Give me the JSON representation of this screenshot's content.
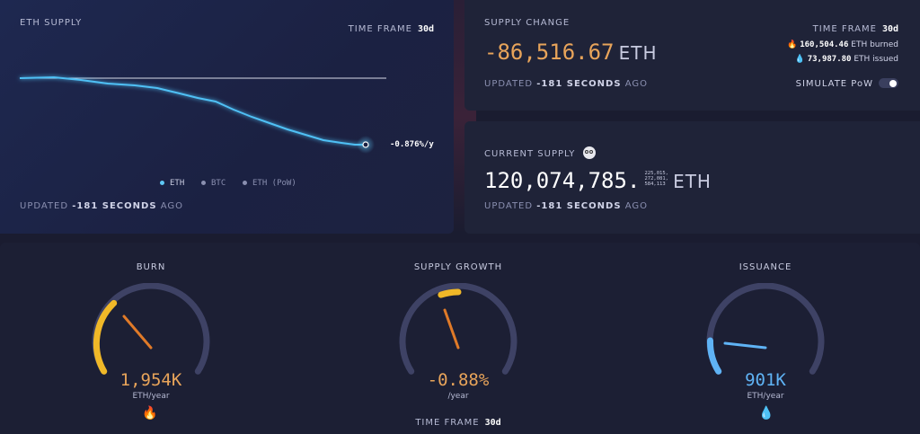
{
  "eth_supply": {
    "title": "ETH SUPPLY",
    "time_frame_label": "TIME FRAME",
    "time_frame_value": "30d",
    "rate_label": "-0.876%/y",
    "legend": [
      {
        "label": "ETH",
        "color": "#5fc8f5"
      },
      {
        "label": "BTC",
        "color": "#8a8fb0"
      },
      {
        "label": "ETH (PoW)",
        "color": "#8a8fb0"
      }
    ],
    "updated_prefix": "UPDATED",
    "updated_value": "-181 SECONDS",
    "updated_suffix": "AGO"
  },
  "supply_change": {
    "title": "SUPPLY CHANGE",
    "time_frame_label": "TIME FRAME",
    "time_frame_value": "30d",
    "value": "-86,516.67",
    "unit": "ETH",
    "burned_value": "160,504.46",
    "burned_unit": "ETH burned",
    "issued_value": "73,987.80",
    "issued_unit": "ETH issued",
    "simulate_label": "SIMULATE PoW",
    "updated_prefix": "UPDATED",
    "updated_value": "-181 SECONDS",
    "updated_suffix": "AGO",
    "colors": {
      "value": "#e8a45a"
    }
  },
  "current_supply": {
    "title": "CURRENT SUPPLY",
    "value": "120,074,785.",
    "decimals_line1": "225,015,",
    "decimals_line2": "272,081,",
    "decimals_line3": "584,113",
    "unit": "ETH",
    "updated_prefix": "UPDATED",
    "updated_value": "-181 SECONDS",
    "updated_suffix": "AGO"
  },
  "gauges": {
    "burn": {
      "title": "BURN",
      "value": "1,954K",
      "unit": "ETH/year",
      "fill_fraction": 0.44,
      "color": "#f0b828"
    },
    "supply_growth": {
      "title": "SUPPLY GROWTH",
      "value": "-0.88%",
      "unit": "/year",
      "time_frame_label": "TIME FRAME",
      "time_frame_value": "30d",
      "color": "#f0b828"
    },
    "issuance": {
      "title": "ISSUANCE",
      "value": "901K",
      "unit": "ETH/year",
      "fill_fraction": 0.2,
      "color": "#5fb3f5"
    }
  }
}
